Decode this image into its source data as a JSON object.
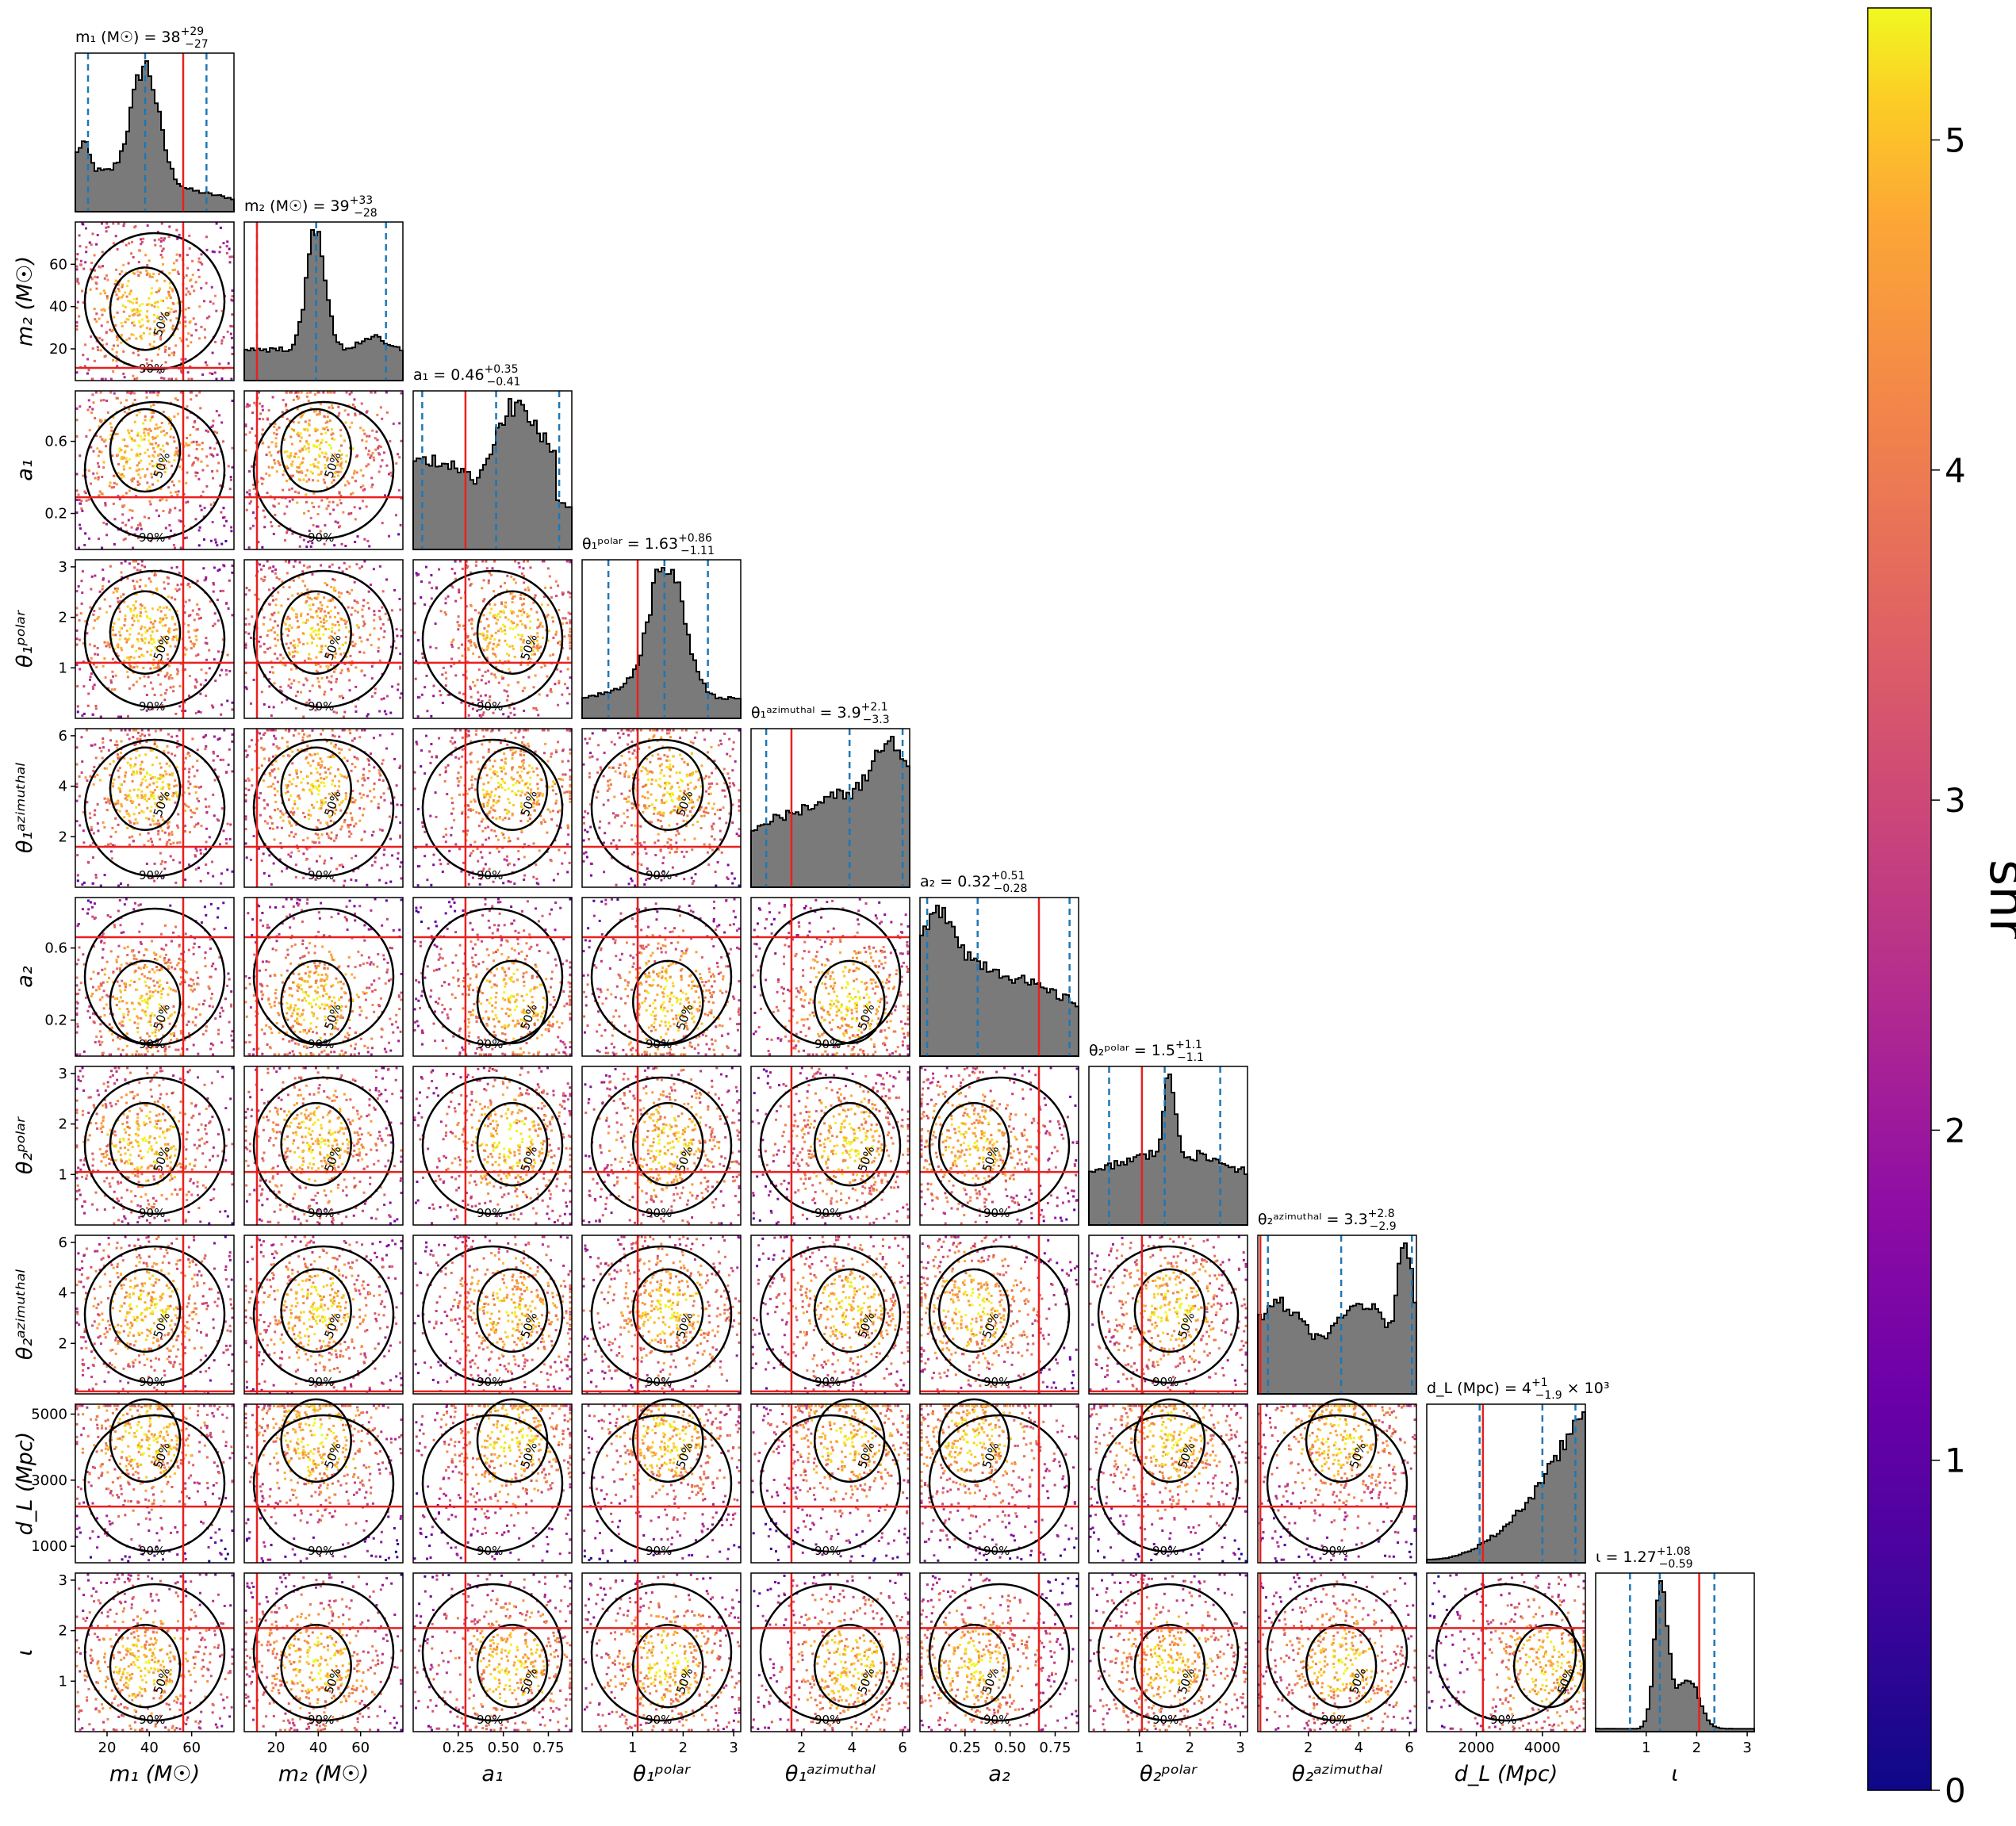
{
  "chart_data": {
    "type": "corner",
    "colors": {
      "hist_fill": "#7a7a7a",
      "hist_edge": "#000000",
      "truth_line": "#e8201f",
      "quantile_line": "#1f77b4",
      "contour": "#000000",
      "colormap": "plasma"
    },
    "colorbar": {
      "label": "snr",
      "ticks": [
        "0",
        "1",
        "2",
        "3",
        "4",
        "5"
      ],
      "range": [
        0,
        5.4
      ]
    },
    "contour_labels": [
      "50%",
      "90%"
    ],
    "parameters": [
      {
        "key": "m1",
        "axis_label_html": "m<tspan font-size='0.7em' dy='6'>1</tspan><tspan dy='-6'> (M</tspan><tspan font-size='0.7em' dy='6'>☉</tspan><tspan dy='-6'>)</tspan>",
        "title": "m₁ (M☉) = 38^{+29}_{-27}",
        "title_base": "m₁ (M☉) = 38",
        "title_plus": "+29",
        "title_minus": "−27",
        "range": [
          5,
          80
        ],
        "ticks": [
          20,
          40,
          60
        ],
        "tick_labels": [
          "20",
          "40",
          "60"
        ],
        "truth": 56,
        "quantiles": [
          11,
          38,
          67
        ],
        "mode": [
          38,
          22
        ]
      },
      {
        "key": "m2",
        "title_base": "m₂ (M☉) = 39",
        "title_plus": "+33",
        "title_minus": "−28",
        "range": [
          5,
          80
        ],
        "ticks": [
          20,
          40,
          60
        ],
        "tick_labels": [
          "20",
          "40",
          "60"
        ],
        "truth": 11,
        "quantiles": [
          11,
          39,
          72
        ],
        "mode": [
          39,
          45
        ]
      },
      {
        "key": "a1",
        "title_base": "a₁ = 0.46",
        "title_plus": "+0.35",
        "title_minus": "−0.41",
        "range": [
          0.0,
          0.88
        ],
        "ticks": [
          0.25,
          0.5,
          0.75
        ],
        "tick_labels": [
          "0.25",
          "0.50",
          "0.75"
        ],
        "truth": 0.29,
        "quantiles": [
          0.05,
          0.46,
          0.81
        ],
        "mode": [
          0.55,
          0.35
        ]
      },
      {
        "key": "theta1p",
        "title_base": "θ₁ᵖᵒˡᵃʳ = 1.63",
        "title_plus": "+0.86",
        "title_minus": "−1.11",
        "range": [
          0.0,
          3.14
        ],
        "ticks": [
          1,
          2,
          3
        ],
        "tick_labels": [
          "1",
          "2",
          "3"
        ],
        "truth": 1.1,
        "quantiles": [
          0.52,
          1.63,
          2.49
        ],
        "mode": [
          1.7,
          1.6
        ]
      },
      {
        "key": "theta1a",
        "title_base": "θ₁ᵃᶻⁱᵐᵘᵗʰᵃˡ = 3.9",
        "title_plus": "+2.1",
        "title_minus": "−3.3",
        "range": [
          0.0,
          6.28
        ],
        "ticks": [
          2,
          4,
          6
        ],
        "tick_labels": [
          "2",
          "4",
          "6"
        ],
        "truth": 1.6,
        "quantiles": [
          0.6,
          3.9,
          6.0
        ],
        "mode": [
          3.9,
          3.0
        ]
      },
      {
        "key": "a2",
        "title_base": "a₂ = 0.32",
        "title_plus": "+0.51",
        "title_minus": "−0.28",
        "range": [
          0.0,
          0.88
        ],
        "ticks": [
          0.25,
          0.5,
          0.75
        ],
        "tick_labels": [
          "0.25",
          "0.50",
          "0.75"
        ],
        "truth": 0.66,
        "quantiles": [
          0.04,
          0.32,
          0.83
        ],
        "mode": [
          0.3,
          0.35
        ]
      },
      {
        "key": "theta2p",
        "title_base": "θ₂ᵖᵒˡᵃʳ = 1.5",
        "title_plus": "+1.1",
        "title_minus": "−1.1",
        "range": [
          0.0,
          3.14
        ],
        "ticks": [
          1,
          2,
          3
        ],
        "tick_labels": [
          "1",
          "2",
          "3"
        ],
        "truth": 1.05,
        "quantiles": [
          0.4,
          1.5,
          2.6
        ],
        "mode": [
          1.6,
          1.0
        ]
      },
      {
        "key": "theta2a",
        "title_base": "θ₂ᵃᶻⁱᵐᵘᵗʰᵃˡ = 3.3",
        "title_plus": "+2.8",
        "title_minus": "−2.9",
        "range": [
          0.0,
          6.28
        ],
        "ticks": [
          2,
          4,
          6
        ],
        "tick_labels": [
          "2",
          "4",
          "6"
        ],
        "truth": 0.1,
        "quantiles": [
          0.4,
          3.3,
          6.1
        ],
        "mode": [
          3.3,
          3.2
        ]
      },
      {
        "key": "dL",
        "title_base": "d_L (Mpc) = 4",
        "title_plus": "+1",
        "title_minus": "−1.9",
        "title_suffix": " × 10³",
        "range": [
          500,
          5300
        ],
        "ticks": [
          2000,
          4000
        ],
        "tick_labels": [
          "2000",
          "4000"
        ],
        "truth": 2200,
        "quantiles": [
          2100,
          4000,
          5000
        ],
        "mode": [
          4200,
          1200
        ]
      },
      {
        "key": "iota",
        "title_base": "ι = 1.27",
        "title_plus": "+1.08",
        "title_minus": "−0.59",
        "range": [
          0.0,
          3.14
        ],
        "ticks": [
          1,
          2,
          3
        ],
        "tick_labels": [
          "1",
          "2",
          "3"
        ],
        "truth": 2.05,
        "quantiles": [
          0.68,
          1.27,
          2.35
        ],
        "mode": [
          1.3,
          0.7
        ]
      }
    ],
    "x_axis_labels": [
      "m₁ (M☉)",
      "m₂ (M☉)",
      "a₁",
      "θ₁ᵖᵒˡᵃʳ",
      "θ₁ᵃᶻⁱᵐᵘᵗʰᵃˡ",
      "a₂",
      "θ₂ᵖᵒˡᵃʳ",
      "θ₂ᵃᶻⁱᵐᵘᵗʰᵃˡ",
      "d_L (Mpc)",
      "ι"
    ],
    "y_axis_labels": [
      "",
      "m₂ (M☉)",
      "a₁",
      "θ₁ᵖᵒˡᵃʳ",
      "θ₁ᵃᶻⁱᵐᵘᵗʰᵃˡ",
      "a₂",
      "θ₂ᵖᵒˡᵃʳ",
      "θ₂ᵃᶻⁱᵐᵘᵗʰᵃˡ",
      "d_L (Mpc)",
      "ι"
    ],
    "y_ticks": {
      "m2": {
        "ticks": [
          20,
          40,
          60
        ],
        "labels": [
          "20",
          "40",
          "60"
        ]
      },
      "a1": {
        "ticks": [
          0.2,
          0.6
        ],
        "labels": [
          "0.2",
          "0.6"
        ]
      },
      "theta1p": {
        "ticks": [
          1,
          2,
          3
        ],
        "labels": [
          "1",
          "2",
          "3"
        ]
      },
      "theta1a": {
        "ticks": [
          2,
          4,
          6
        ],
        "labels": [
          "2",
          "4",
          "6"
        ]
      },
      "a2": {
        "ticks": [
          0.2,
          0.6
        ],
        "labels": [
          "0.2",
          "0.6"
        ]
      },
      "theta2p": {
        "ticks": [
          1,
          2,
          3
        ],
        "labels": [
          "1",
          "2",
          "3"
        ]
      },
      "theta2a": {
        "ticks": [
          2,
          4,
          6
        ],
        "labels": [
          "2",
          "4",
          "6"
        ]
      },
      "dL": {
        "ticks": [
          1000,
          3000,
          5000
        ],
        "labels": [
          "1000",
          "3000",
          "5000"
        ]
      },
      "iota": {
        "ticks": [
          1,
          2,
          3
        ],
        "labels": [
          "1",
          "2",
          "3"
        ]
      }
    }
  }
}
